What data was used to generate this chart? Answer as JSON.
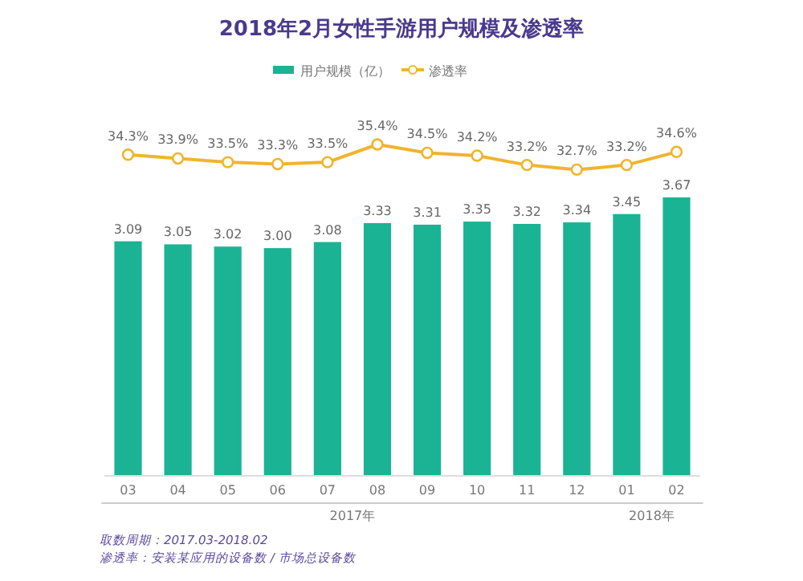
{
  "chart_data": [
    {
      "type": "bar",
      "categories": [
        "03",
        "04",
        "05",
        "06",
        "07",
        "08",
        "09",
        "10",
        "11",
        "12",
        "01",
        "02"
      ],
      "legend": "top",
      "grid": false,
      "series": [
        {
          "name": "用户规模（亿）",
          "type": "bar",
          "color": "#1ab394",
          "values": [
            3.09,
            3.05,
            3.02,
            3.0,
            3.08,
            3.33,
            3.31,
            3.35,
            3.32,
            3.34,
            3.45,
            3.67
          ],
          "value_labels": [
            "3.09",
            "3.05",
            "3.02",
            "3.00",
            "3.08",
            "3.33",
            "3.31",
            "3.35",
            "3.32",
            "3.34",
            "3.45",
            "3.67"
          ]
        }
      ],
      "annotations": [
        "2017年",
        "2018年",
        "取数周期：2017.03-2018.02",
        "渗透率：安装某应用的设备数 / 市场总设备数"
      ]
    },
    {
      "type": "line",
      "title": "2018年2月女性手游用户规模及渗透率",
      "categories": [
        "03",
        "04",
        "05",
        "06",
        "07",
        "08",
        "09",
        "10",
        "11",
        "12",
        "01",
        "02"
      ],
      "legend": "top",
      "marker": "circle",
      "tick_labels": false,
      "series": [
        {
          "name": "渗透率",
          "color": "#f0b42c",
          "values": [
            34.3,
            33.9,
            33.5,
            33.3,
            33.5,
            35.4,
            34.5,
            34.2,
            33.2,
            32.7,
            33.2,
            34.6
          ],
          "value_labels": [
            "34.3%",
            "33.9%",
            "33.5%",
            "33.3%",
            "33.5%",
            "35.4%",
            "34.5%",
            "34.2%",
            "33.2%",
            "32.7%",
            "33.2%",
            "34.6%"
          ]
        }
      ]
    }
  ]
}
